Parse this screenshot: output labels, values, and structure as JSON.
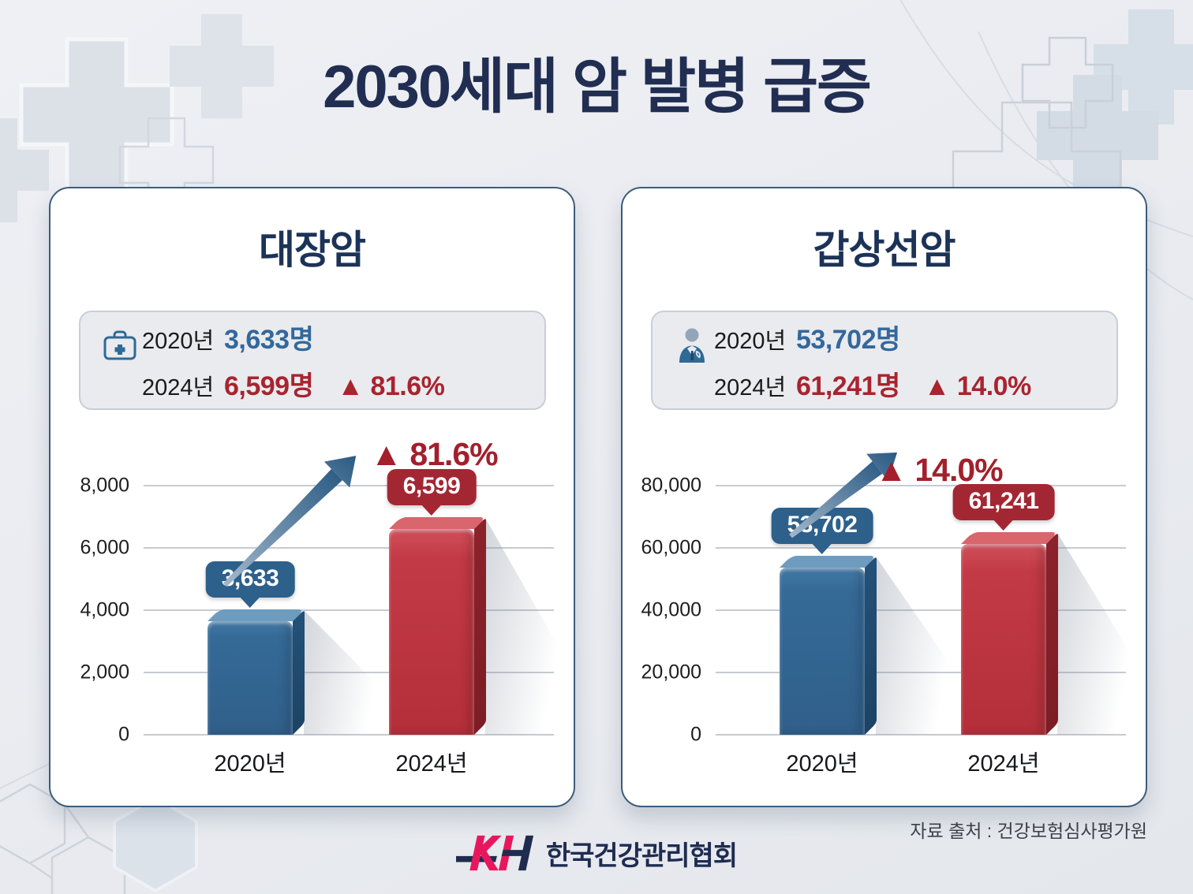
{
  "page": {
    "title": "2030세대 암 발병 급증",
    "source": "자료 출처 : 건강보험심사평가원",
    "logo": {
      "mark": "KH",
      "name": "한국건강관리협회"
    }
  },
  "cards": [
    {
      "title": "대장암",
      "icon": "medical-bag-icon",
      "stats": [
        {
          "year": "2020년",
          "value": "3,633명",
          "delta": ""
        },
        {
          "year": "2024년",
          "value": "6,599명",
          "delta": "▲ 81.6%"
        }
      ]
    },
    {
      "title": "갑상선암",
      "icon": "doctor-icon",
      "stats": [
        {
          "year": "2020년",
          "value": "53,702명",
          "delta": ""
        },
        {
          "year": "2024년",
          "value": "61,241명",
          "delta": "▲ 14.0%"
        }
      ]
    }
  ],
  "chart_data": [
    {
      "type": "bar",
      "title": "대장암",
      "categories": [
        "2020년",
        "2024년"
      ],
      "values": [
        3633,
        6599
      ],
      "value_labels": [
        "3,633",
        "6,599"
      ],
      "delta_label": "▲ 81.6%",
      "ylim": [
        0,
        8000
      ],
      "yticks": [
        "0",
        "2,000",
        "4,000",
        "6,000",
        "8,000"
      ],
      "bar_colors": [
        "#356a97",
        "#c23a45"
      ],
      "grid": true,
      "legend": "none"
    },
    {
      "type": "bar",
      "title": "갑상선암",
      "categories": [
        "2020년",
        "2024년"
      ],
      "values": [
        53702,
        61241
      ],
      "value_labels": [
        "53,702",
        "61,241"
      ],
      "delta_label": "▲ 14.0%",
      "ylim": [
        0,
        80000
      ],
      "yticks": [
        "0",
        "20,000",
        "40,000",
        "60,000",
        "80,000"
      ],
      "bar_colors": [
        "#356a97",
        "#c23a45"
      ],
      "grid": true,
      "legend": "none"
    }
  ]
}
